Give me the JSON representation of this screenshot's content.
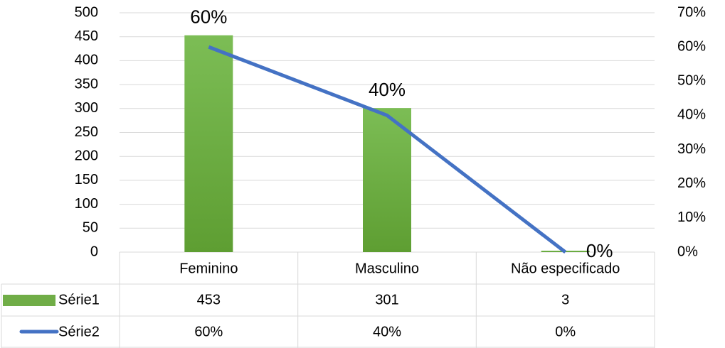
{
  "chart_data": {
    "type": "bar-line",
    "categories": [
      "Feminino",
      "Masculino",
      "Não especificado"
    ],
    "series": [
      {
        "name": "Série1",
        "color": "#70ad47",
        "values": [
          453,
          301,
          3
        ]
      },
      {
        "name": "Série2",
        "color": "#4472c4",
        "axis": "y2",
        "values": [
          60,
          40,
          0
        ],
        "value_labels": [
          "60%",
          "40%",
          "0%"
        ]
      }
    ],
    "ylim": [
      0,
      500
    ],
    "yticks": [
      0,
      50,
      100,
      150,
      200,
      250,
      300,
      350,
      400,
      450,
      500
    ],
    "y2lim": [
      0,
      70
    ],
    "y2ticks": [
      {
        "value": 0,
        "label": "0%"
      },
      {
        "value": 10,
        "label": "10%"
      },
      {
        "value": 20,
        "label": "20%"
      },
      {
        "value": 30,
        "label": "30%"
      },
      {
        "value": 40,
        "label": "40%"
      },
      {
        "value": 50,
        "label": "50%"
      },
      {
        "value": 60,
        "label": "60%"
      },
      {
        "value": 70,
        "label": "70%"
      }
    ],
    "grid": true
  }
}
